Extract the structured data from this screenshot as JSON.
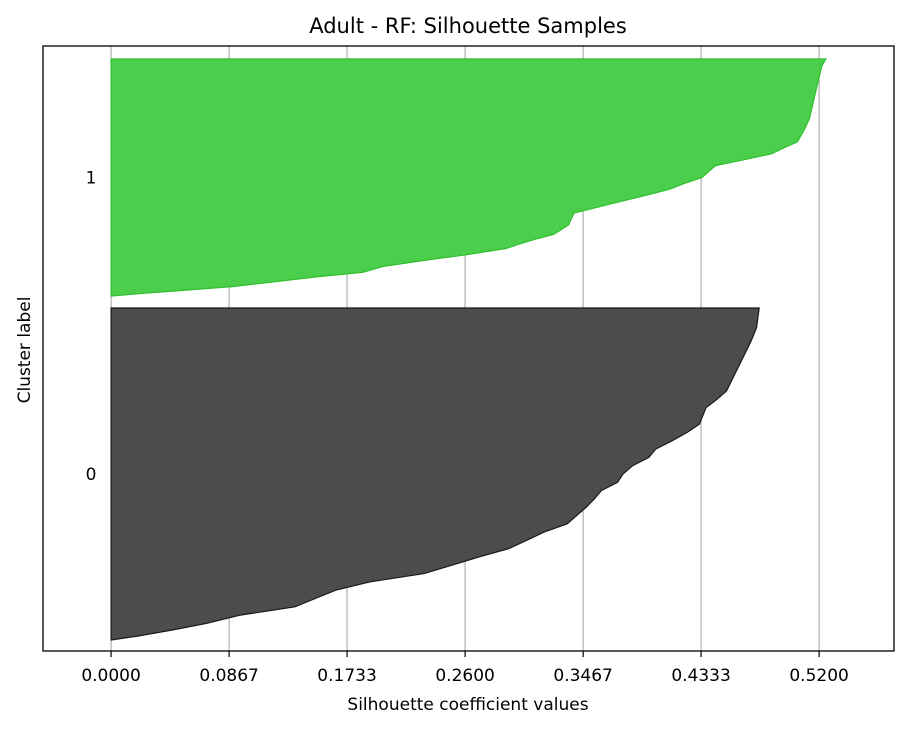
{
  "chart_data": {
    "type": "silhouette",
    "title": "Adult - RF: Silhouette Samples",
    "xlabel": "Silhouette coefficient values",
    "ylabel": "Cluster label",
    "xlim": [
      -0.05,
      0.575
    ],
    "x_ticks": [
      0.0,
      0.0867,
      0.1733,
      0.26,
      0.3467,
      0.4333,
      0.52
    ],
    "x_tick_labels": [
      "0.0000",
      "0.0867",
      "0.1733",
      "0.2600",
      "0.3467",
      "0.4333",
      "0.5200"
    ],
    "grid": "vertical",
    "clusters": [
      {
        "label": "0",
        "color": "#4c4c4c",
        "edge_color": "#1a1a1a",
        "profile": [
          [
            0.0,
            0.0
          ],
          [
            0.02,
            0.012
          ],
          [
            0.045,
            0.03
          ],
          [
            0.07,
            0.05
          ],
          [
            0.095,
            0.075
          ],
          [
            0.116,
            0.088
          ],
          [
            0.135,
            0.1
          ],
          [
            0.15,
            0.125
          ],
          [
            0.165,
            0.15
          ],
          [
            0.19,
            0.175
          ],
          [
            0.23,
            0.2
          ],
          [
            0.25,
            0.225
          ],
          [
            0.27,
            0.25
          ],
          [
            0.292,
            0.275
          ],
          [
            0.305,
            0.3
          ],
          [
            0.318,
            0.325
          ],
          [
            0.335,
            0.35
          ],
          [
            0.342,
            0.375
          ],
          [
            0.349,
            0.4
          ],
          [
            0.355,
            0.425
          ],
          [
            0.36,
            0.45
          ],
          [
            0.372,
            0.475
          ],
          [
            0.376,
            0.5
          ],
          [
            0.383,
            0.525
          ],
          [
            0.395,
            0.55
          ],
          [
            0.4,
            0.575
          ],
          [
            0.412,
            0.6
          ],
          [
            0.423,
            0.625
          ],
          [
            0.432,
            0.65
          ],
          [
            0.437,
            0.7
          ],
          [
            0.445,
            0.725
          ],
          [
            0.452,
            0.75
          ],
          [
            0.458,
            0.8
          ],
          [
            0.464,
            0.85
          ],
          [
            0.47,
            0.9
          ],
          [
            0.474,
            0.94
          ],
          [
            0.476,
            1.0
          ]
        ]
      },
      {
        "label": "1",
        "color": "#4bce4b",
        "edge_color": "#2fbf2f",
        "profile": [
          [
            0.0,
            0.0
          ],
          [
            0.025,
            0.012
          ],
          [
            0.055,
            0.025
          ],
          [
            0.09,
            0.04
          ],
          [
            0.12,
            0.06
          ],
          [
            0.15,
            0.08
          ],
          [
            0.185,
            0.1
          ],
          [
            0.2,
            0.125
          ],
          [
            0.23,
            0.15
          ],
          [
            0.262,
            0.175
          ],
          [
            0.29,
            0.2
          ],
          [
            0.3,
            0.22
          ],
          [
            0.312,
            0.24
          ],
          [
            0.325,
            0.26
          ],
          [
            0.336,
            0.3
          ],
          [
            0.34,
            0.35
          ],
          [
            0.375,
            0.4
          ],
          [
            0.393,
            0.425
          ],
          [
            0.41,
            0.45
          ],
          [
            0.421,
            0.475
          ],
          [
            0.434,
            0.5
          ],
          [
            0.444,
            0.55
          ],
          [
            0.465,
            0.575
          ],
          [
            0.485,
            0.6
          ],
          [
            0.494,
            0.625
          ],
          [
            0.504,
            0.65
          ],
          [
            0.509,
            0.7
          ],
          [
            0.513,
            0.75
          ],
          [
            0.515,
            0.8
          ],
          [
            0.517,
            0.85
          ],
          [
            0.519,
            0.9
          ],
          [
            0.522,
            0.97
          ],
          [
            0.525,
            1.0
          ]
        ]
      }
    ]
  }
}
